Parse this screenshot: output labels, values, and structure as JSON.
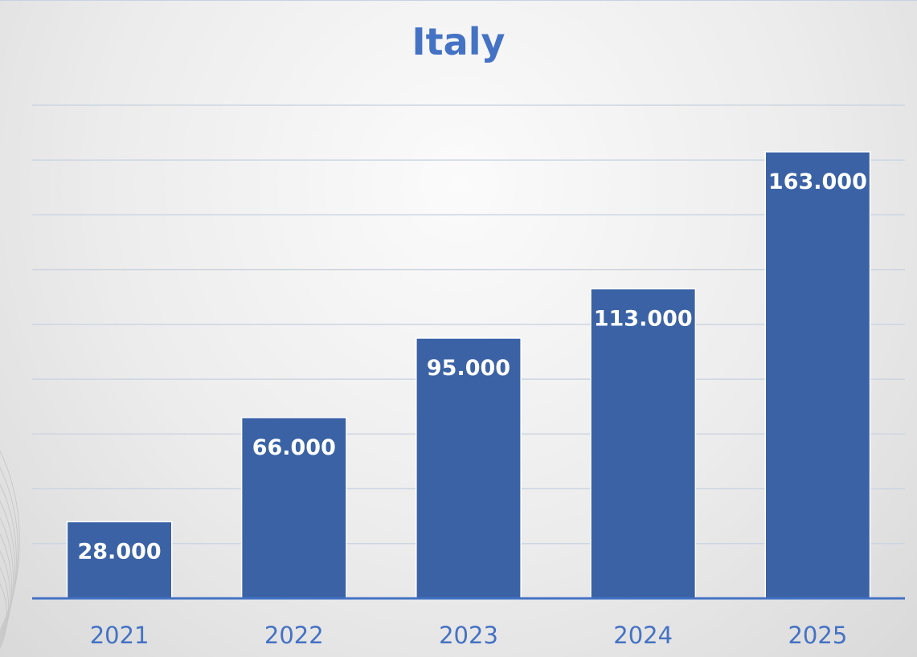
{
  "chart_data": {
    "type": "bar",
    "title": "Italy",
    "categories": [
      "2021",
      "2022",
      "2023",
      "2024",
      "2025"
    ],
    "values": [
      28000,
      66000,
      95000,
      113000,
      163000
    ],
    "data_labels": [
      "28.000",
      "66.000",
      "95.000",
      "113.000",
      "163.000"
    ],
    "xlabel": "",
    "ylabel": "",
    "ylim": [
      0,
      180000
    ],
    "grid": true,
    "legend": "none",
    "colors": {
      "bar": "#3a62a5",
      "title": "#4472c4",
      "axis": "#4472c4",
      "gridline": "#cdd5e1"
    }
  }
}
